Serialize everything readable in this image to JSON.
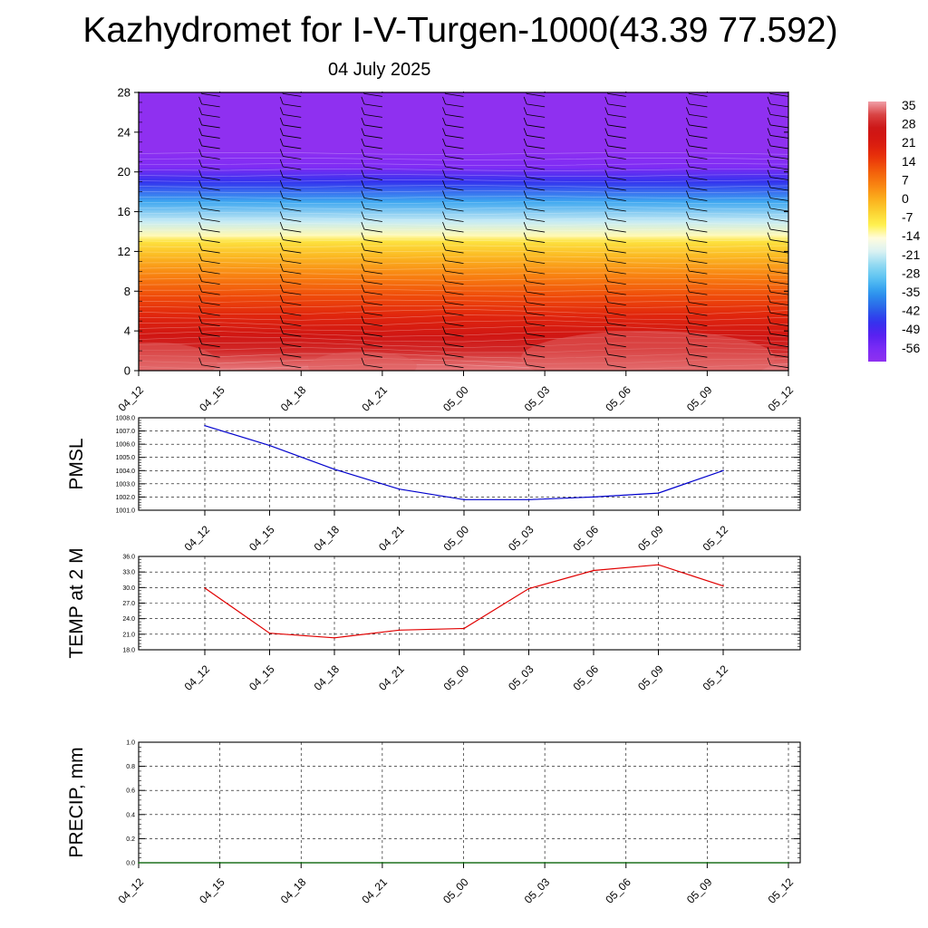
{
  "title": "Kazhydromet for I-V-Turgen-1000(43.39 77.592)",
  "subtitle": "04 July 2025",
  "colors": {
    "pmsl_line": "#0000cc",
    "temp_line": "#e00000",
    "precip_line": "#006400",
    "contour_palette": [
      "#8f30f0",
      "#7a2bf5",
      "#5520f0",
      "#3035ee",
      "#2a68e8",
      "#2c95ee",
      "#56c0f2",
      "#8ed8f2",
      "#d8f1f4",
      "#fffce0",
      "#fff14d",
      "#fbd030",
      "#fbaa1a",
      "#f88010",
      "#f25a0a",
      "#e8300a",
      "#d81a10",
      "#cc1414",
      "#d84040",
      "#f0a0a8"
    ]
  },
  "chart_data": [
    {
      "type": "heatmap",
      "title": "",
      "x_tick_labels": [
        "04_12",
        "04_15",
        "04_18",
        "04_21",
        "05_00",
        "05_03",
        "05_06",
        "05_09",
        "05_12"
      ],
      "y_tick_labels": [
        "0",
        "4",
        "8",
        "12",
        "16",
        "20",
        "24",
        "28"
      ],
      "ylim": [
        0,
        28
      ],
      "colorbar_labels": [
        "35",
        "28",
        "21",
        "14",
        "7",
        "0",
        "-7",
        "-14",
        "-21",
        "-28",
        "-35",
        "-42",
        "-49",
        "-56"
      ],
      "value_range": [
        -60,
        38
      ],
      "temperature_profile": [
        {
          "level": 0,
          "value": 36
        },
        {
          "level": 1,
          "value": 34
        },
        {
          "level": 2,
          "value": 30
        },
        {
          "level": 3.5,
          "value": 26
        },
        {
          "level": 5.5,
          "value": 20
        },
        {
          "level": 7.5,
          "value": 14
        },
        {
          "level": 9.5,
          "value": 7
        },
        {
          "level": 11.5,
          "value": 0
        },
        {
          "level": 13.0,
          "value": -6
        },
        {
          "level": 13.6,
          "value": -12
        },
        {
          "level": 15.0,
          "value": -20
        },
        {
          "level": 17.0,
          "value": -32
        },
        {
          "level": 19.0,
          "value": -45
        },
        {
          "level": 20.5,
          "value": -56
        },
        {
          "level": 21.5,
          "value": -58
        },
        {
          "level": 22.2,
          "value": -62
        },
        {
          "level": 28,
          "value": -62
        }
      ],
      "wind_barbs": "shown",
      "grid": false
    },
    {
      "type": "line",
      "ylabel": "PMSL",
      "categories": [
        "04_12",
        "04_15",
        "04_18",
        "04_21",
        "05_00",
        "05_03",
        "05_06",
        "05_09",
        "05_12"
      ],
      "values": [
        1007.4,
        1005.9,
        1004.1,
        1002.6,
        1001.8,
        1001.8,
        1002.0,
        1002.3,
        1004.0
      ],
      "ylim": [
        1001.0,
        1008.0
      ],
      "y_tick_labels": [
        "1001.0",
        "1002.0",
        "1003.0",
        "1004.0",
        "1005.0",
        "1006.0",
        "1007.0",
        "1008.0"
      ],
      "grid": true
    },
    {
      "type": "line",
      "ylabel": "TEMP at 2 M",
      "categories": [
        "04_12",
        "04_15",
        "04_18",
        "04_21",
        "05_00",
        "05_03",
        "05_06",
        "05_09",
        "05_12"
      ],
      "values": [
        29.9,
        21.2,
        20.3,
        21.8,
        22.1,
        29.8,
        33.3,
        34.4,
        30.3
      ],
      "ylim": [
        18.0,
        36.0
      ],
      "y_tick_labels": [
        "18.0",
        "21.0",
        "24.0",
        "27.0",
        "30.0",
        "33.0",
        "36.0"
      ],
      "grid": true
    },
    {
      "type": "line",
      "ylabel": "PRECIP, mm",
      "x_tick_labels": [
        "04_12",
        "04_15",
        "04_18",
        "04_21",
        "05_00",
        "05_03",
        "05_06",
        "05_09",
        "05_12"
      ],
      "values": [
        0,
        0,
        0,
        0,
        0,
        0,
        0,
        0,
        0
      ],
      "ylim": [
        0.0,
        1.0
      ],
      "y_tick_labels": [
        "0.0",
        "0.2",
        "0.4",
        "0.6",
        "0.8",
        "1.0"
      ],
      "grid": true
    }
  ]
}
